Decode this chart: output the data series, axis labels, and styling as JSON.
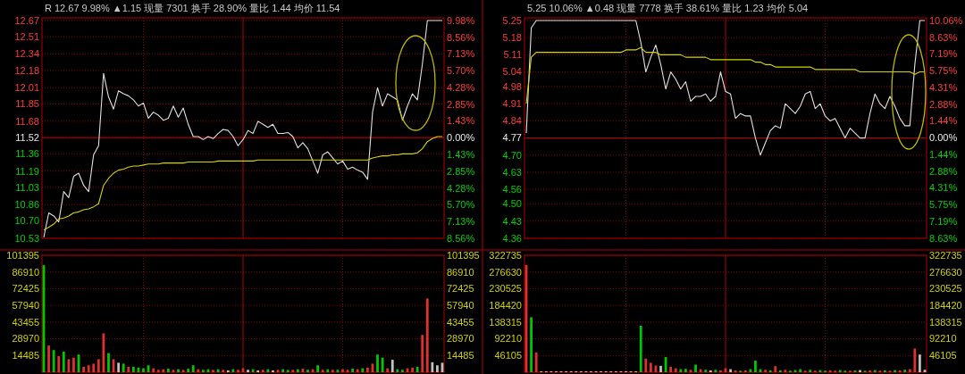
{
  "chart_data": [
    {
      "type": "line",
      "title": "R 12.67 9.98% ▲1.15 现量 7301 换手 28.90% 量比 1.44 均价 11.54",
      "categories": [
        null,
        null,
        null,
        null,
        null,
        null,
        null,
        null,
        null,
        null,
        null,
        null,
        null,
        null,
        null,
        null,
        null,
        null,
        null,
        null,
        null,
        null,
        null,
        null,
        null,
        null,
        null,
        null,
        null,
        null,
        null,
        null,
        null,
        null,
        null,
        null,
        null,
        null,
        null,
        null,
        null,
        null,
        null,
        null,
        null,
        null,
        null,
        null,
        null,
        null,
        null,
        null,
        null,
        null,
        null,
        null,
        null,
        null,
        null,
        null,
        null,
        null,
        null,
        null,
        null,
        null,
        null,
        null,
        null,
        null,
        null,
        null,
        null,
        null,
        null,
        null,
        null,
        null,
        null,
        null,
        null
      ],
      "series": [
        {
          "color": "#e0e0e0",
          "values": [
            10.54,
            10.78,
            10.75,
            10.69,
            10.99,
            10.93,
            11.14,
            11.17,
            11.05,
            10.99,
            11.35,
            11.44,
            12.15,
            11.92,
            11.8,
            11.98,
            11.95,
            11.93,
            11.89,
            11.83,
            11.86,
            11.71,
            11.77,
            11.74,
            11.69,
            11.71,
            11.83,
            11.72,
            11.81,
            11.65,
            11.53,
            11.53,
            11.5,
            11.53,
            11.51,
            11.56,
            11.6,
            11.59,
            11.53,
            11.44,
            11.5,
            11.59,
            11.56,
            11.68,
            11.65,
            11.62,
            11.65,
            11.56,
            11.56,
            11.57,
            11.53,
            11.42,
            11.47,
            11.41,
            11.29,
            11.17,
            11.35,
            11.38,
            11.32,
            11.26,
            11.29,
            11.21,
            11.23,
            11.2,
            11.18,
            11.11,
            11.77,
            12.01,
            11.83,
            11.95,
            11.92,
            11.89,
            11.69,
            11.83,
            11.95,
            11.89,
            12.24,
            12.67,
            12.67,
            12.67,
            12.67
          ]
        },
        {
          "color": "#d4d400",
          "values": [
            10.61,
            10.64,
            10.67,
            10.72,
            10.73,
            10.75,
            10.78,
            10.79,
            10.81,
            10.82,
            10.84,
            10.87,
            11.05,
            11.12,
            11.17,
            11.2,
            11.21,
            11.23,
            11.24,
            11.24,
            11.25,
            11.26,
            11.26,
            11.26,
            11.27,
            11.27,
            11.27,
            11.27,
            11.27,
            11.28,
            11.28,
            11.28,
            11.28,
            11.28,
            11.28,
            11.29,
            11.29,
            11.29,
            11.29,
            11.29,
            11.29,
            11.29,
            11.29,
            11.3,
            11.3,
            11.3,
            11.3,
            11.3,
            11.3,
            11.3,
            11.3,
            11.3,
            11.3,
            11.3,
            11.3,
            11.3,
            11.3,
            11.3,
            11.3,
            11.3,
            11.3,
            11.3,
            11.3,
            11.3,
            11.3,
            11.3,
            11.32,
            11.33,
            11.34,
            11.34,
            11.35,
            11.35,
            11.36,
            11.36,
            11.36,
            11.37,
            11.41,
            11.48,
            11.51,
            11.53,
            11.53
          ]
        }
      ],
      "ylim": [
        10.53,
        12.67
      ],
      "yticks": [
        10.53,
        {
          "value": 10.7,
          "label": "10.70"
        },
        10.86,
        11.03,
        11.19,
        11.36,
        11.52,
        11.68,
        11.85,
        12.01,
        12.18,
        12.34,
        12.51,
        12.67
      ],
      "y2lim": [
        -8.56,
        9.98
      ],
      "y2ticks": [
        {
          "value": -8.56,
          "label": "8.56%"
        },
        {
          "value": -7.13,
          "label": "7.13%"
        },
        {
          "value": -5.7,
          "label": "5.70%"
        },
        {
          "value": -4.28,
          "label": "4.28%"
        },
        {
          "value": -2.85,
          "label": "2.85%"
        },
        {
          "value": -1.43,
          "label": "1.43%"
        },
        {
          "value": 0,
          "label": "0.00%"
        },
        {
          "value": 1.43,
          "label": "1.43%"
        },
        {
          "value": 2.85,
          "label": "2.85%"
        },
        {
          "value": 4.28,
          "label": "4.28%"
        },
        {
          "value": 5.7,
          "label": "5.70%"
        },
        {
          "value": 7.13,
          "label": "7.13%"
        },
        {
          "value": 8.56,
          "label": "8.56%"
        },
        {
          "value": 9.98,
          "label": "9.98%"
        }
      ],
      "ref_lines": [
        {
          "axis": "y",
          "value": 11.52,
          "color": "#c00000"
        }
      ],
      "grid": true,
      "tick_labels": "y"
    },
    {
      "type": "line",
      "title": "5.25 10.06% ▲0.48 现量 7778 换手 38.61% 量比 1.23 均价 5.04",
      "categories": [
        null,
        null,
        null,
        null,
        null,
        null,
        null,
        null,
        null,
        null,
        null,
        null,
        null,
        null,
        null,
        null,
        null,
        null,
        null,
        null,
        null,
        null,
        null,
        null,
        null,
        null,
        null,
        null,
        null,
        null,
        null,
        null,
        null,
        null,
        null,
        null,
        null,
        null,
        null,
        null,
        null,
        null,
        null,
        null,
        null,
        null,
        null,
        null,
        null,
        null,
        null,
        null,
        null,
        null,
        null,
        null,
        null,
        null,
        null,
        null,
        null,
        null,
        null,
        null,
        null,
        null,
        null,
        null,
        null,
        null,
        null,
        null,
        null,
        null,
        null,
        null,
        null,
        null,
        null,
        null,
        null
      ],
      "series": [
        {
          "color": "#e0e0e0",
          "values": [
            4.79,
            5.22,
            5.25,
            5.25,
            5.25,
            5.25,
            5.25,
            5.25,
            5.25,
            5.25,
            5.25,
            5.25,
            5.25,
            5.25,
            5.25,
            5.25,
            5.25,
            5.25,
            5.25,
            5.25,
            5.25,
            5.25,
            5.25,
            5.16,
            5.04,
            5.1,
            5.15,
            5.07,
            4.97,
            5.04,
            5.01,
            4.97,
            5.0,
            4.92,
            4.94,
            4.94,
            4.95,
            4.92,
            4.94,
            5.04,
            4.96,
            4.95,
            4.85,
            4.87,
            4.86,
            4.86,
            4.77,
            4.7,
            4.75,
            4.8,
            4.82,
            4.81,
            4.91,
            4.89,
            4.87,
            4.9,
            4.95,
            4.96,
            4.89,
            4.91,
            4.86,
            4.84,
            4.85,
            4.81,
            4.77,
            4.81,
            4.79,
            4.77,
            4.77,
            4.87,
            4.95,
            4.91,
            4.89,
            4.94,
            4.9,
            4.85,
            4.82,
            4.82,
            5.07,
            5.25,
            5.25
          ]
        },
        {
          "color": "#d4d400",
          "values": [
            4.91,
            5.1,
            5.12,
            5.12,
            5.12,
            5.12,
            5.12,
            5.12,
            5.12,
            5.12,
            5.12,
            5.12,
            5.12,
            5.12,
            5.12,
            5.12,
            5.12,
            5.12,
            5.12,
            5.12,
            5.13,
            5.13,
            5.13,
            5.14,
            5.12,
            5.12,
            5.12,
            5.11,
            5.11,
            5.11,
            5.11,
            5.11,
            5.1,
            5.1,
            5.1,
            5.1,
            5.1,
            5.09,
            5.09,
            5.09,
            5.09,
            5.09,
            5.09,
            5.09,
            5.09,
            5.09,
            5.08,
            5.08,
            5.07,
            5.07,
            5.06,
            5.06,
            5.06,
            5.06,
            5.06,
            5.06,
            5.06,
            5.06,
            5.05,
            5.05,
            5.05,
            5.05,
            5.05,
            5.05,
            5.05,
            5.05,
            5.05,
            5.04,
            5.04,
            5.04,
            5.04,
            5.04,
            5.04,
            5.04,
            5.04,
            5.04,
            5.04,
            5.04,
            5.03,
            5.04,
            5.04
          ]
        }
      ],
      "ylim": [
        4.36,
        5.25
      ],
      "yticks": [
        4.36,
        4.43,
        {
          "value": 4.5,
          "label": "4.50"
        },
        4.56,
        4.63,
        {
          "value": 4.7,
          "label": "4.70"
        },
        4.77,
        4.84,
        4.91,
        4.98,
        5.04,
        5.11,
        5.18,
        5.25
      ],
      "y2lim": [
        -8.63,
        10.06
      ],
      "y2ticks": [
        {
          "value": -8.63,
          "label": "8.63%"
        },
        {
          "value": -7.19,
          "label": "7.19%"
        },
        {
          "value": -5.75,
          "label": "5.75%"
        },
        {
          "value": -4.31,
          "label": "4.31%"
        },
        {
          "value": -2.88,
          "label": "2.88%"
        },
        {
          "value": -1.44,
          "label": "1.44%"
        },
        {
          "value": 0,
          "label": "0.00%"
        },
        {
          "value": 1.44,
          "label": "1.44%"
        },
        {
          "value": 2.88,
          "label": "2.88%"
        },
        {
          "value": 4.31,
          "label": "4.31%"
        },
        {
          "value": 5.75,
          "label": "5.75%"
        },
        {
          "value": 7.19,
          "label": "7.19%"
        },
        {
          "value": 8.63,
          "label": "8.63%"
        },
        {
          "value": 10.06,
          "label": "10.06%"
        }
      ],
      "ref_lines": [
        {
          "axis": "y",
          "value": 4.77,
          "color": "#c00000"
        }
      ],
      "grid": true,
      "tick_labels": "y"
    },
    {
      "type": "bar",
      "categories": [
        null,
        null,
        null,
        null,
        null,
        null,
        null,
        null,
        null,
        null,
        null,
        null,
        null,
        null,
        null,
        null,
        null,
        null,
        null,
        null,
        null,
        null,
        null,
        null,
        null,
        null,
        null,
        null,
        null,
        null,
        null,
        null,
        null,
        null,
        null,
        null,
        null,
        null,
        null,
        null,
        null,
        null,
        null,
        null,
        null,
        null,
        null,
        null,
        null,
        null,
        null,
        null,
        null,
        null,
        null,
        null,
        null,
        null,
        null,
        null,
        null,
        null,
        null,
        null,
        null,
        null,
        null,
        null,
        null,
        null,
        null,
        null,
        null,
        null,
        null,
        null,
        null,
        null,
        null,
        null,
        null
      ],
      "values": [
        92800,
        23100,
        19200,
        13900,
        17900,
        11300,
        12600,
        15300,
        4700,
        6000,
        7400,
        11300,
        33700,
        16600,
        11300,
        8200,
        7400,
        4700,
        4700,
        4000,
        3400,
        6000,
        3400,
        2100,
        2600,
        3000,
        2100,
        2600,
        2000,
        3000,
        6000,
        2600,
        2100,
        2600,
        2000,
        2600,
        2100,
        1600,
        2600,
        2100,
        3400,
        2100,
        2600,
        1600,
        2100,
        2600,
        1600,
        2100,
        2600,
        2000,
        2100,
        2600,
        3000,
        2100,
        2600,
        6000,
        2100,
        2600,
        2100,
        2100,
        2600,
        2100,
        3000,
        2600,
        3400,
        4000,
        7400,
        15300,
        12600,
        3400,
        10800,
        2600,
        2100,
        3400,
        4000,
        4700,
        32300,
        63900,
        8700,
        6000,
        8200
      ],
      "colors": [
        "#00c800",
        "#e03030",
        "#00c800",
        "#e03030",
        "#00c800",
        "#e03030",
        "#e03030",
        "#00c800",
        "#e03030",
        "#e03030",
        "#e03030",
        "#e03030",
        "#e03030",
        "#00c800",
        "#e03030",
        "#c0c0c0",
        "#00c800",
        "#e03030",
        "#00c800",
        "#00c800",
        "#00c800",
        "#00c800",
        "#e03030",
        "#e03030",
        "#e03030",
        "#00c800",
        "#e03030",
        "#00c800",
        "#e03030",
        "#00c800",
        "#00c800",
        "#e03030",
        "#00c800",
        "#00c800",
        "#e03030",
        "#00c800",
        "#e03030",
        "#c0c0c0",
        "#00c800",
        "#e03030",
        "#e03030",
        "#c0c0c0",
        "#00c800",
        "#c0c0c0",
        "#e03030",
        "#00c800",
        "#c0c0c0",
        "#e03030",
        "#00c800",
        "#00c800",
        "#e03030",
        "#00c800",
        "#e03030",
        "#00c800",
        "#e03030",
        "#00c800",
        "#e03030",
        "#00c800",
        "#e03030",
        "#00c800",
        "#e03030",
        "#e03030",
        "#00c800",
        "#e03030",
        "#00c800",
        "#e03030",
        "#e03030",
        "#00c800",
        "#00c800",
        "#e03030",
        "#c0c0c0",
        "#00c800",
        "#00c800",
        "#e03030",
        "#e03030",
        "#00c800",
        "#e03030",
        "#e03030",
        "#c0c0c0",
        "#c0c0c0",
        "#c0c0c0"
      ],
      "ylim": [
        0,
        101395
      ],
      "yticks": [
        14485,
        28970,
        43455,
        57940,
        72425,
        86910,
        101395
      ],
      "y2lim": [
        0,
        101395
      ],
      "y2ticks": [
        14485,
        28970,
        43455,
        57940,
        72425,
        86910,
        101395
      ],
      "grid": true,
      "tick_labels": "y"
    },
    {
      "type": "bar",
      "categories": [
        null,
        null,
        null,
        null,
        null,
        null,
        null,
        null,
        null,
        null,
        null,
        null,
        null,
        null,
        null,
        null,
        null,
        null,
        null,
        null,
        null,
        null,
        null,
        null,
        null,
        null,
        null,
        null,
        null,
        null,
        null,
        null,
        null,
        null,
        null,
        null,
        null,
        null,
        null,
        null,
        null,
        null,
        null,
        null,
        null,
        null,
        null,
        null,
        null,
        null,
        null,
        null,
        null,
        null,
        null,
        null,
        null,
        null,
        null,
        null,
        null,
        null,
        null,
        null,
        null,
        null,
        null,
        null,
        null,
        null,
        null,
        null,
        null,
        null,
        null,
        null,
        null,
        null,
        null,
        null,
        null
      ],
      "values": [
        295800,
        151700,
        54500,
        2500,
        2500,
        2500,
        2500,
        2500,
        2500,
        2500,
        2500,
        2500,
        2500,
        2500,
        2500,
        2500,
        2500,
        2500,
        2500,
        2500,
        2500,
        2500,
        2500,
        128200,
        37700,
        26000,
        18400,
        17600,
        41900,
        15100,
        10900,
        8400,
        9200,
        6700,
        21000,
        8400,
        6700,
        5000,
        6700,
        5000,
        10900,
        8400,
        5000,
        4200,
        5000,
        8400,
        31800,
        8400,
        6700,
        5000,
        16800,
        5000,
        6700,
        4200,
        5900,
        8400,
        4200,
        6700,
        4200,
        5900,
        4200,
        5000,
        4200,
        5900,
        4200,
        4200,
        5000,
        5900,
        4200,
        5000,
        5900,
        4200,
        5000,
        4200,
        5900,
        5000,
        6700,
        8400,
        65400,
        48600,
        6700
      ],
      "colors": [
        "#e03030",
        "#00c800",
        "#e03030",
        "#c0c0c0",
        "#c0c0c0",
        "#c0c0c0",
        "#c0c0c0",
        "#c0c0c0",
        "#c0c0c0",
        "#c0c0c0",
        "#c0c0c0",
        "#c0c0c0",
        "#c0c0c0",
        "#c0c0c0",
        "#c0c0c0",
        "#c0c0c0",
        "#c0c0c0",
        "#c0c0c0",
        "#c0c0c0",
        "#c0c0c0",
        "#c0c0c0",
        "#c0c0c0",
        "#c0c0c0",
        "#00c800",
        "#e03030",
        "#e03030",
        "#e03030",
        "#c0c0c0",
        "#00c800",
        "#e03030",
        "#e03030",
        "#00c800",
        "#00c800",
        "#e03030",
        "#00c800",
        "#e03030",
        "#00c800",
        "#c0c0c0",
        "#00c800",
        "#e03030",
        "#e03030",
        "#c0c0c0",
        "#e03030",
        "#00c800",
        "#e03030",
        "#00c800",
        "#00c800",
        "#00c800",
        "#e03030",
        "#00c800",
        "#e03030",
        "#00c800",
        "#e03030",
        "#00c800",
        "#00c800",
        "#00c800",
        "#e03030",
        "#00c800",
        "#e03030",
        "#00c800",
        "#00c800",
        "#e03030",
        "#e03030",
        "#00c800",
        "#00c800",
        "#e03030",
        "#00c800",
        "#c0c0c0",
        "#00c800",
        "#e03030",
        "#00c800",
        "#e03030",
        "#00c800",
        "#e03030",
        "#00c800",
        "#e03030",
        "#00c800",
        "#e03030",
        "#e03030",
        "#c0c0c0",
        "#c0c0c0"
      ],
      "ylim": [
        0,
        322735
      ],
      "yticks": [
        46105,
        92210,
        138315,
        184420,
        230525,
        276630,
        322735
      ],
      "y2lim": [
        0,
        322735
      ],
      "y2ticks": [
        46105,
        92210,
        138315,
        184420,
        230525,
        276630,
        322735
      ],
      "grid": true,
      "tick_labels": "y"
    }
  ]
}
